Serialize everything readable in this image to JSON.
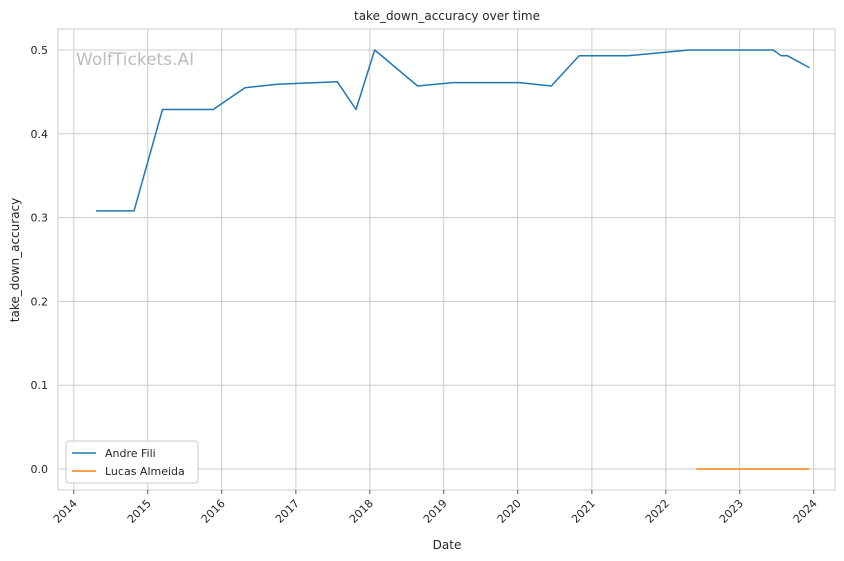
{
  "chart_data": {
    "type": "line",
    "title": "take_down_accuracy over time",
    "xlabel": "Date",
    "ylabel": "take_down_accuracy",
    "watermark": "WolfTickets.AI",
    "x_ticks": [
      "2014",
      "2015",
      "2016",
      "2017",
      "2018",
      "2019",
      "2020",
      "2021",
      "2022",
      "2023",
      "2024"
    ],
    "y_ticks": [
      "0.0",
      "0.1",
      "0.2",
      "0.3",
      "0.4",
      "0.5"
    ],
    "xlim": [
      "2013-10-15",
      "2024-04-15"
    ],
    "ylim": [
      -0.025,
      0.525
    ],
    "grid": true,
    "legend_position": "bottom-left",
    "series": [
      {
        "name": "Andre Fili",
        "color": "#1f77b4",
        "points": [
          {
            "x": "2014-04-20",
            "y": 0.308
          },
          {
            "x": "2014-10-25",
            "y": 0.308
          },
          {
            "x": "2015-03-15",
            "y": 0.429
          },
          {
            "x": "2015-11-20",
            "y": 0.429
          },
          {
            "x": "2016-04-25",
            "y": 0.455
          },
          {
            "x": "2016-10-01",
            "y": 0.459
          },
          {
            "x": "2017-07-25",
            "y": 0.462
          },
          {
            "x": "2017-10-25",
            "y": 0.429
          },
          {
            "x": "2018-01-25",
            "y": 0.5
          },
          {
            "x": "2018-08-25",
            "y": 0.457
          },
          {
            "x": "2019-02-15",
            "y": 0.461
          },
          {
            "x": "2020-01-10",
            "y": 0.461
          },
          {
            "x": "2020-06-15",
            "y": 0.457
          },
          {
            "x": "2020-10-30",
            "y": 0.493
          },
          {
            "x": "2021-06-25",
            "y": 0.493
          },
          {
            "x": "2022-04-25",
            "y": 0.5
          },
          {
            "x": "2023-06-15",
            "y": 0.5
          },
          {
            "x": "2023-07-25",
            "y": 0.493
          },
          {
            "x": "2023-08-25",
            "y": 0.493
          },
          {
            "x": "2023-12-10",
            "y": 0.479
          }
        ]
      },
      {
        "name": "Lucas Almeida",
        "color": "#ff7f0e",
        "points": [
          {
            "x": "2022-06-01",
            "y": 0.0
          },
          {
            "x": "2023-12-10",
            "y": 0.0
          }
        ]
      }
    ]
  }
}
